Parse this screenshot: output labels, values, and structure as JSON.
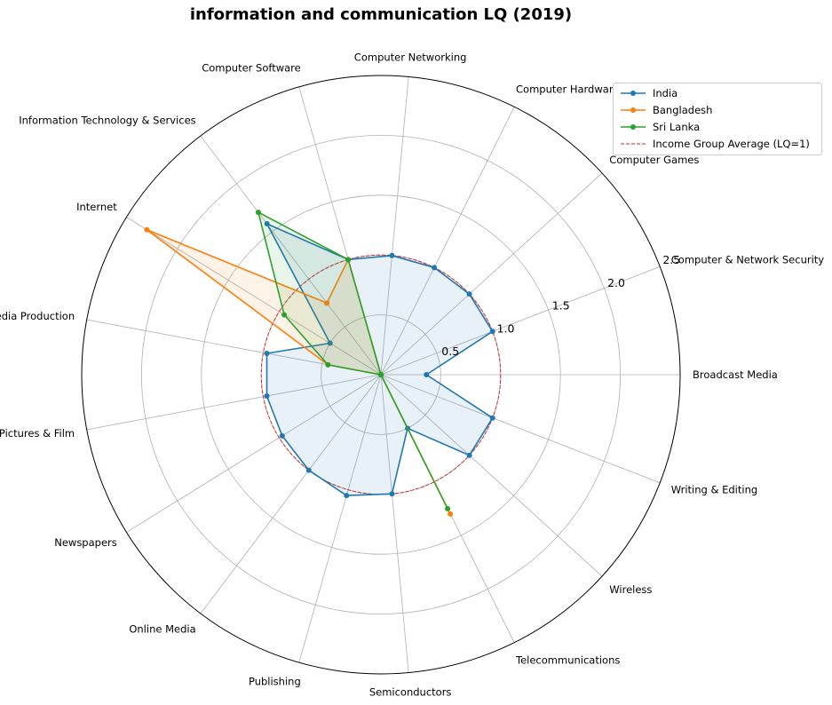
{
  "title": "information and communication LQ (2019)",
  "chart_data": {
    "type": "radar",
    "title": "information and communication LQ (2019)",
    "categories": [
      "Broadcast Media",
      "Computer & Network Security",
      "Computer Games",
      "Computer Hardware",
      "Computer Networking",
      "Computer Software",
      "Information Technology & Services",
      "Internet",
      "Media Production",
      "Motion Pictures & Film",
      "Newspapers",
      "Online Media",
      "Publishing",
      "Semiconductors",
      "Telecommunications",
      "Wireless",
      "Writing & Editing"
    ],
    "radial_ticks": [
      0.5,
      1.0,
      1.5,
      2.0,
      2.5
    ],
    "radial_tick_labels": [
      "0.5",
      "1.0",
      "1.5",
      "2.0",
      "2.5"
    ],
    "rlim": [
      0,
      2.5
    ],
    "grid": true,
    "legend_position": "top-right",
    "series": [
      {
        "name": "India",
        "color": "#1f77b4",
        "fill": true,
        "values": [
          0.38,
          1.0,
          1.0,
          1.0,
          1.0,
          1.0,
          1.58,
          0.5,
          0.97,
          0.97,
          0.97,
          1.0,
          1.05,
          1.0,
          0.5,
          1.0,
          1.0
        ]
      },
      {
        "name": "Bangladesh",
        "color": "#ff7f0e",
        "fill": true,
        "values": [
          0,
          0,
          0,
          0,
          0,
          1.0,
          0.75,
          2.3,
          0.45,
          0,
          0,
          0,
          0,
          0,
          1.3,
          0,
          0
        ]
      },
      {
        "name": "Sri Lanka",
        "color": "#2ca02c",
        "fill": true,
        "values": [
          0,
          0,
          0,
          0,
          0,
          1.0,
          1.7,
          0.95,
          0.45,
          0,
          0,
          0,
          0,
          0,
          1.25,
          0,
          0
        ]
      }
    ],
    "reference": {
      "name": "Income Group Average (LQ=1)",
      "value": 1.0,
      "color": "#d62728",
      "style": "dashed"
    }
  }
}
